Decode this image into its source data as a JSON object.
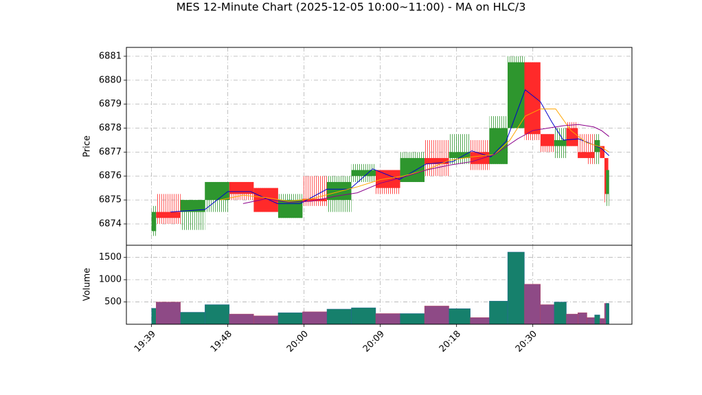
{
  "chart_data": {
    "type": "candlestick",
    "title": "MES 12-Minute Chart (2025-12-05 10:00~11:00) - MA on HLC/3",
    "ylabel": "Price",
    "volume_ylabel": "Volume",
    "xlim": [
      -3.3,
      63
    ],
    "xticks": [
      {
        "value": 0,
        "label": "19:39"
      },
      {
        "value": 10,
        "label": "19:48"
      },
      {
        "value": 20,
        "label": "20:00"
      },
      {
        "value": 30,
        "label": "20:09"
      },
      {
        "value": 40,
        "label": "20:18"
      },
      {
        "value": 50,
        "label": "20:30"
      }
    ],
    "ylim": [
      6873.11,
      6881.37
    ],
    "yticks": [
      6874,
      6875,
      6876,
      6877,
      6878,
      6879,
      6880,
      6881
    ],
    "volume_ylim": [
      0,
      1773
    ],
    "volume_yticks": [
      500,
      1000,
      1500
    ],
    "grid": true,
    "up_color": "#2e962e",
    "down_color": "#ff2a2a",
    "volume_up_color": "#16806c",
    "volume_down_color": "#8e4a86",
    "x0": [
      0,
      0.6,
      3.8,
      7.0,
      10.2,
      13.4,
      16.6,
      19.8,
      23.0,
      26.2,
      29.4,
      32.6,
      35.8,
      39.0,
      41.8,
      44.3,
      46.7,
      48.9,
      51.0,
      52.8,
      54.4,
      55.9,
      57.1,
      58.1,
      58.8,
      59.4,
      59.6
    ],
    "x1": [
      0.6,
      3.8,
      7.0,
      10.2,
      13.4,
      16.6,
      19.8,
      23.0,
      26.2,
      29.4,
      32.6,
      35.8,
      39.0,
      41.8,
      44.3,
      46.7,
      48.9,
      51.0,
      52.8,
      54.4,
      55.9,
      57.1,
      58.1,
      58.8,
      59.4,
      59.9,
      60.0
    ],
    "open": [
      6873.7,
      6874.5,
      6874.5,
      6875.0,
      6875.75,
      6875.5,
      6874.25,
      6875.05,
      6875.0,
      6876.0,
      6876.25,
      6875.75,
      6876.75,
      6876.75,
      6877.0,
      6876.5,
      6878.0,
      6880.75,
      6877.75,
      6877.25,
      6878.0,
      6877.0,
      6877.0,
      6877.0,
      6877.25,
      6876.75,
      6875.25
    ],
    "high": [
      6874.75,
      6875.25,
      6875.0,
      6875.75,
      6875.75,
      6875.5,
      6875.25,
      6876.0,
      6876.0,
      6876.5,
      6876.25,
      6877.0,
      6877.5,
      6877.75,
      6877.5,
      6878.5,
      6881.0,
      6880.75,
      6877.75,
      6878.0,
      6878.25,
      6877.75,
      6877.75,
      6877.75,
      6877.25,
      6876.75,
      6876.25
    ],
    "low": [
      6873.5,
      6874.0,
      6873.75,
      6874.5,
      6875.0,
      6874.5,
      6874.25,
      6874.75,
      6874.5,
      6875.75,
      6875.25,
      6875.75,
      6876.0,
      6876.5,
      6876.25,
      6876.5,
      6878.0,
      6877.5,
      6877.0,
      6876.75,
      6877.25,
      6876.75,
      6876.5,
      6876.5,
      6876.75,
      6874.9,
      6874.75
    ],
    "close": [
      6874.5,
      6874.25,
      6875.0,
      6875.75,
      6875.25,
      6874.5,
      6875.0,
      6874.95,
      6875.75,
      6876.25,
      6875.5,
      6876.75,
      6876.5,
      6877.0,
      6876.5,
      6878.0,
      6880.75,
      6877.75,
      6877.25,
      6877.5,
      6877.25,
      6876.75,
      6876.75,
      6877.5,
      6876.75,
      6875.25,
      6876.25
    ],
    "volume": [
      360,
      500,
      270,
      440,
      230,
      190,
      260,
      280,
      340,
      370,
      240,
      240,
      410,
      350,
      150,
      520,
      1620,
      900,
      440,
      500,
      230,
      260,
      150,
      210,
      130,
      470,
      470
    ],
    "ma": [
      {
        "color": "#0000cc",
        "x": [
          2.5,
          7,
          10,
          13,
          16.5,
          19.5,
          23,
          26,
          29,
          32.5,
          36,
          39.5,
          42,
          44.5,
          46.5,
          49,
          51,
          52.5,
          54,
          56,
          58,
          59,
          60
        ],
        "values": [
          6874.5,
          6874.6,
          6875.35,
          6875.35,
          6874.85,
          6874.85,
          6875.45,
          6875.45,
          6876.3,
          6875.85,
          6876.5,
          6876.6,
          6877.05,
          6876.8,
          6877.45,
          6879.6,
          6879.1,
          6878.25,
          6877.5,
          6877.55,
          6877.3,
          6877.15,
          6876.85
        ]
      },
      {
        "color": "#ffa500",
        "x": [
          9,
          12,
          15,
          18,
          21,
          24,
          27,
          30,
          33,
          36,
          39,
          42,
          45,
          47,
          49,
          51,
          53,
          55,
          57,
          59,
          60
        ],
        "values": [
          6875.0,
          6875.2,
          6875.1,
          6874.95,
          6875.05,
          6875.3,
          6875.55,
          6875.85,
          6876.0,
          6876.25,
          6876.65,
          6876.8,
          6876.9,
          6877.5,
          6878.5,
          6878.8,
          6878.8,
          6877.9,
          6877.4,
          6877.2,
          6877.0
        ]
      },
      {
        "color": "#8b008b",
        "x": [
          12,
          15,
          18,
          21,
          24,
          27,
          30,
          33,
          36,
          39,
          42,
          45,
          48,
          50,
          52,
          54,
          56,
          58,
          59,
          60
        ],
        "values": [
          6874.85,
          6875.05,
          6874.9,
          6874.95,
          6875.15,
          6875.3,
          6875.7,
          6875.95,
          6876.25,
          6876.45,
          6876.6,
          6876.9,
          6877.55,
          6877.9,
          6878.0,
          6878.1,
          6878.15,
          6878.05,
          6877.9,
          6877.65
        ]
      }
    ]
  }
}
